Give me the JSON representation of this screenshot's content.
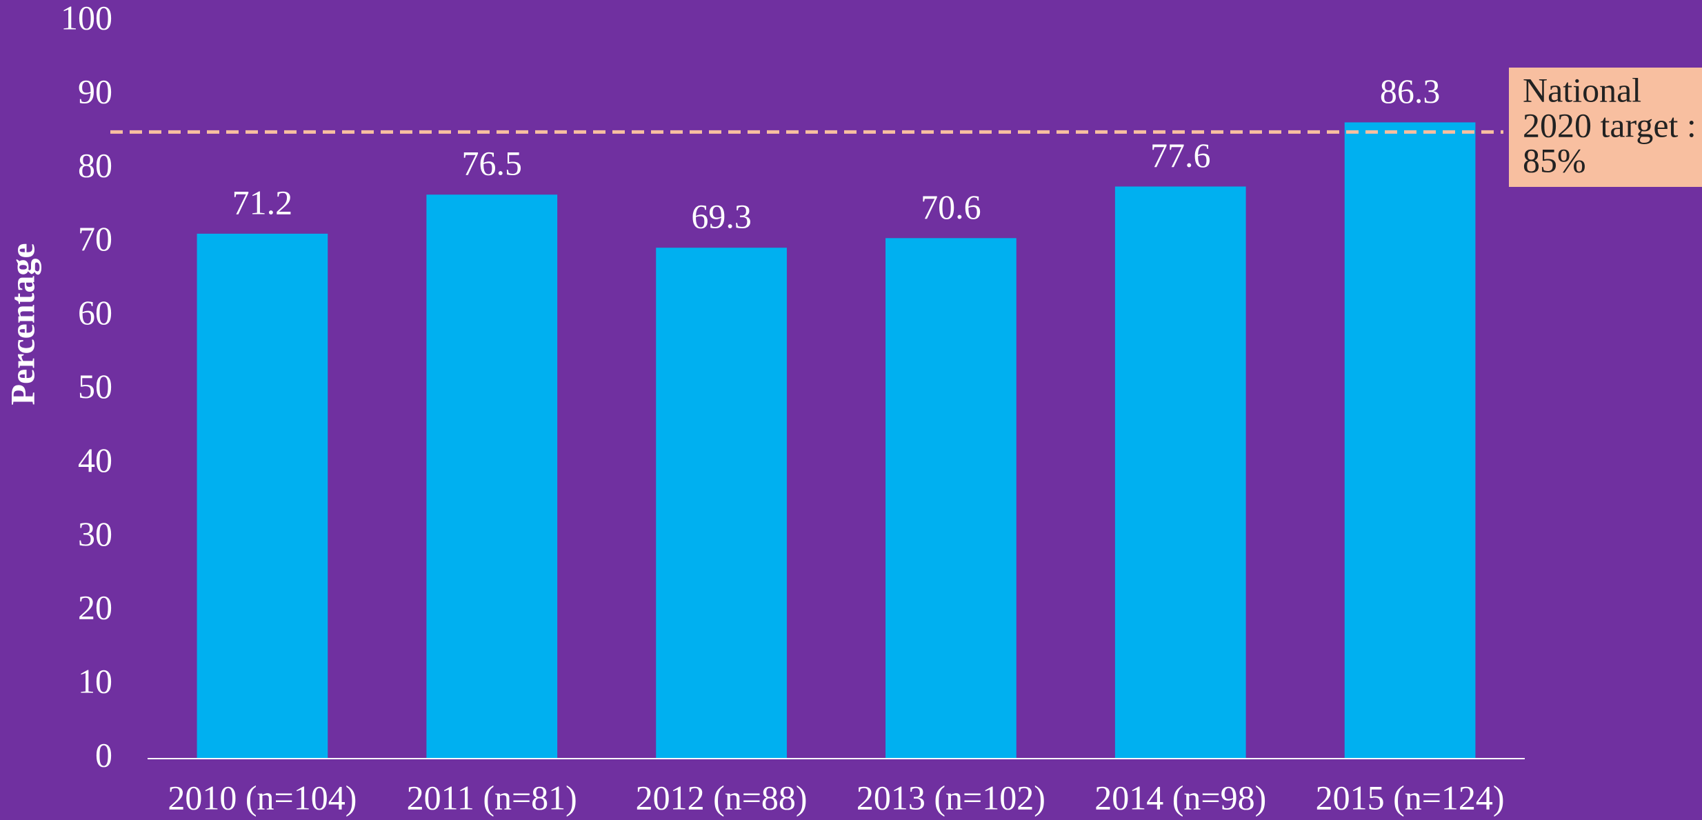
{
  "chart_data": {
    "type": "bar",
    "y_label": "Percentage",
    "categories": [
      "2010 (n=104)",
      "2011 (n=81)",
      "2012 (n=88)",
      "2013 (n=102)",
      "2014 (n=98)",
      "2015 (n=124)"
    ],
    "values": [
      71.2,
      76.5,
      69.3,
      70.6,
      77.6,
      86.3
    ],
    "color": "#00b0f0",
    "ylim": [
      0,
      100
    ],
    "yticks": [
      0,
      10,
      20,
      30,
      40,
      50,
      60,
      70,
      80,
      90,
      100
    ],
    "grid": false,
    "target": {
      "value": 85,
      "color": "#f8bfa0",
      "lines": [
        "National",
        "2020 target :",
        "85%"
      ]
    }
  }
}
